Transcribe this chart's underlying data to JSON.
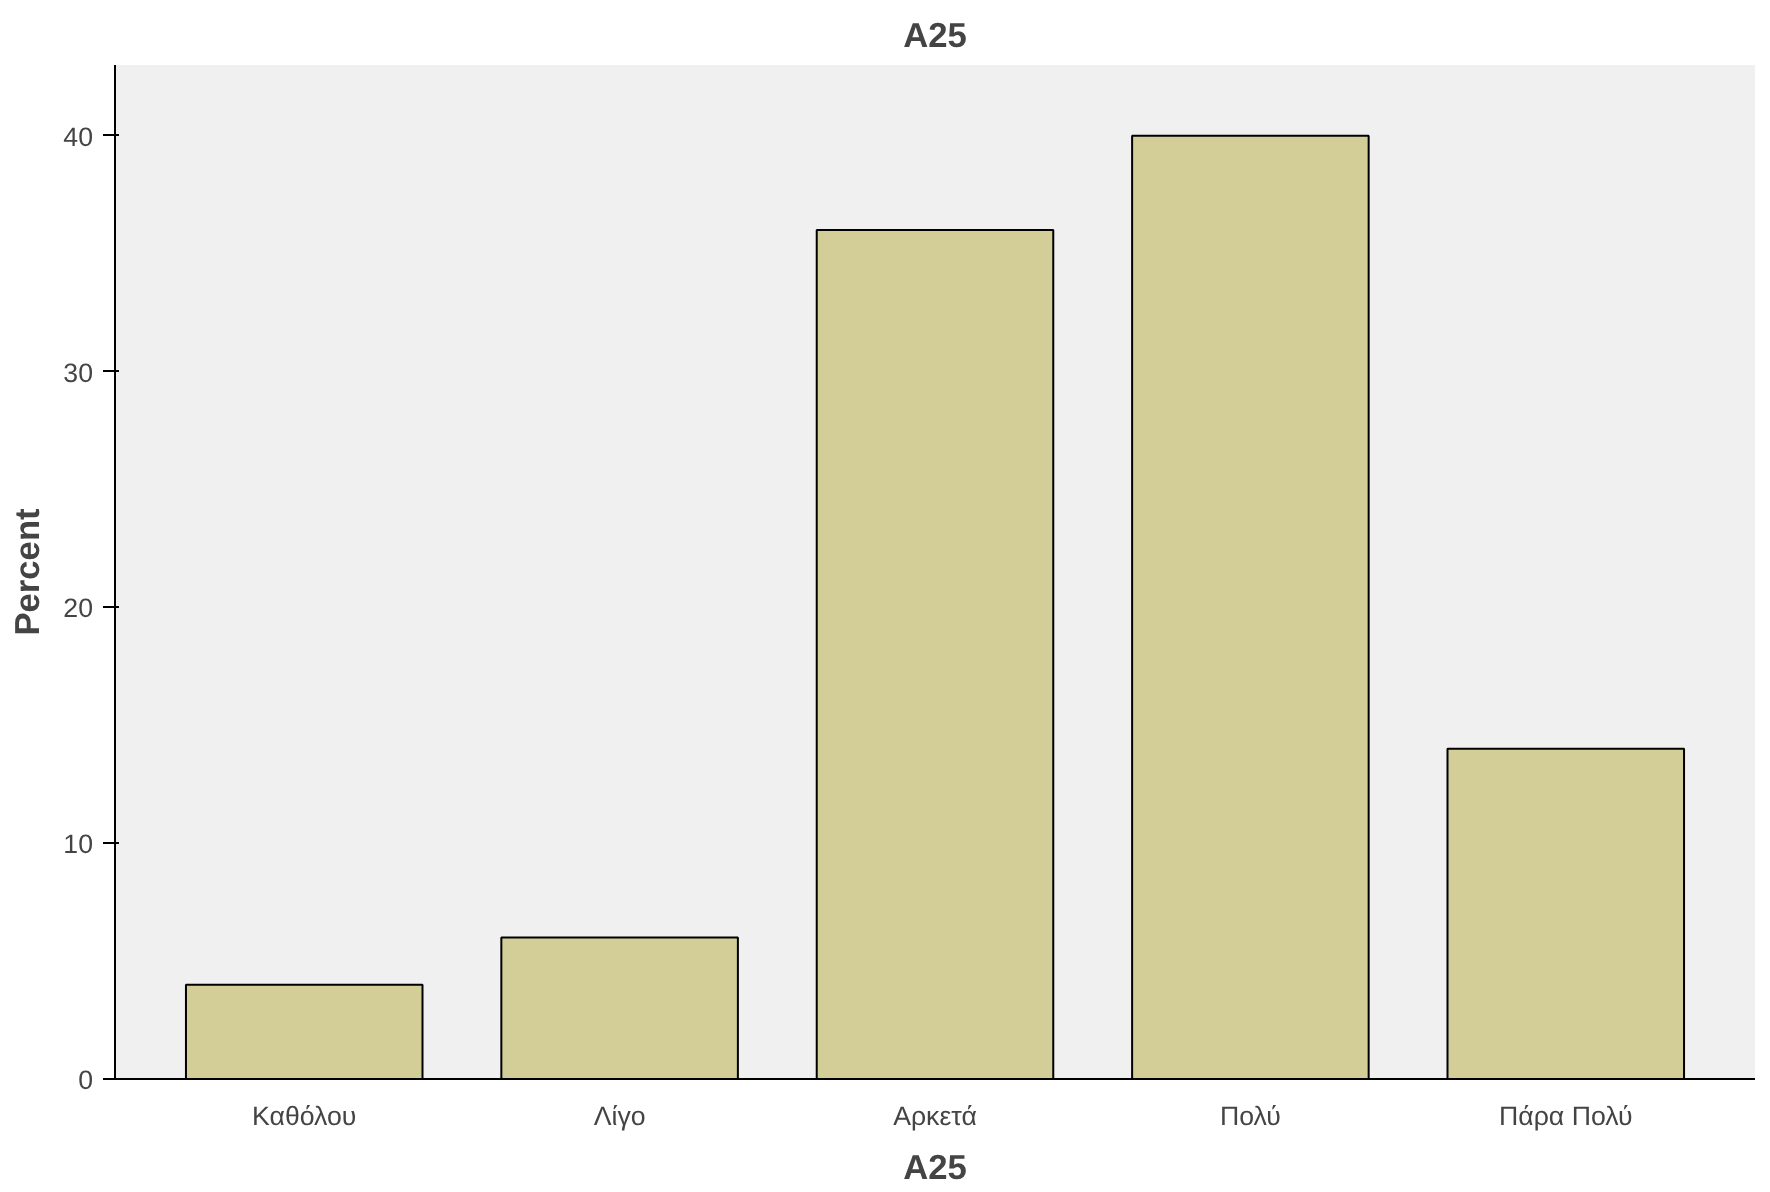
{
  "chart_data": {
    "type": "bar",
    "title": "A25",
    "xlabel": "A25",
    "ylabel": "Percent",
    "categories": [
      "Καθόλου",
      "Λίγο",
      "Αρκετά",
      "Πολύ",
      "Πάρα Πολύ"
    ],
    "values": [
      4,
      6,
      36,
      40,
      14
    ],
    "color": "#d3ce98",
    "ylim": [
      0,
      43
    ],
    "yticks": [
      0,
      10,
      20,
      30,
      40
    ],
    "grid": false
  }
}
